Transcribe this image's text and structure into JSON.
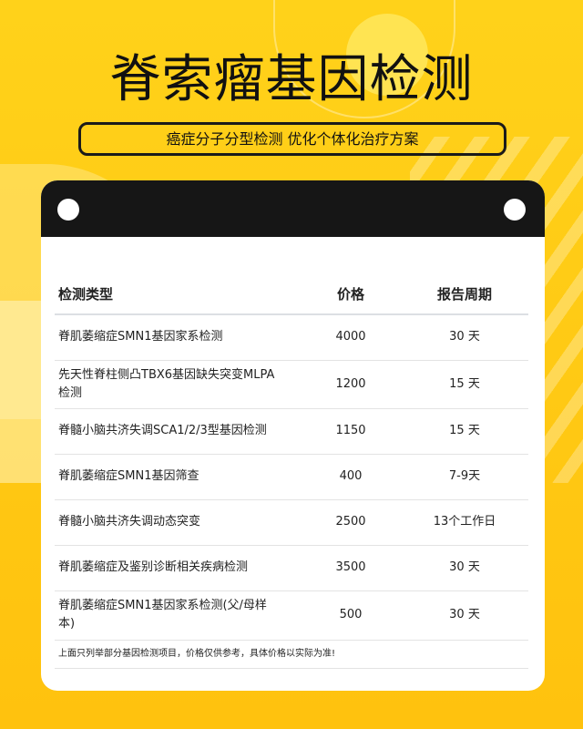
{
  "title": "脊索瘤基因检测",
  "subtitle": "癌症分子分型检测 优化个体化治疗方案",
  "colors": {
    "background": "#ffc813",
    "card_header": "#161616"
  },
  "table": {
    "headers": [
      "检测类型",
      "价格",
      "报告周期"
    ],
    "rows": [
      {
        "type": "脊肌萎缩症SMN1基因家系检测",
        "price": "4000",
        "period": "30 天"
      },
      {
        "type": "先天性脊柱侧凸TBX6基因缺失突变MLPA检测",
        "price": "1200",
        "period": "15 天"
      },
      {
        "type": "脊髓小脑共济失调SCA1/2/3型基因检测",
        "price": "1150",
        "period": "15 天"
      },
      {
        "type": "脊肌萎缩症SMN1基因筛查",
        "price": "400",
        "period": "7-9天"
      },
      {
        "type": "脊髓小脑共济失调动态突变",
        "price": "2500",
        "period": "13个工作日"
      },
      {
        "type": "脊肌萎缩症及鉴别诊断相关疾病检测",
        "price": "3500",
        "period": "30 天"
      },
      {
        "type": "脊肌萎缩症SMN1基因家系检测(父/母样本)",
        "price": "500",
        "period": "30 天"
      }
    ],
    "note": "上面只列举部分基因检测项目，价格仅供参考，具体价格以实际为准!"
  }
}
